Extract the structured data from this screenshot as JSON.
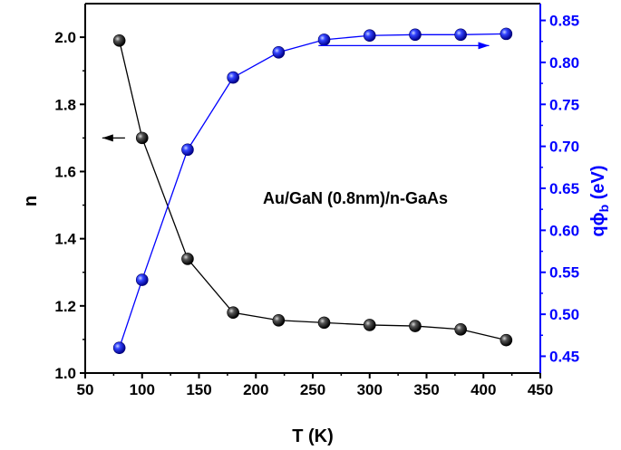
{
  "chart_data": {
    "type": "line",
    "title": "",
    "annotation": "Au/GaN (0.8nm)/n-GaAs",
    "xlabel": "T (K)",
    "ylabel_left": "n",
    "ylabel_right": {
      "prefix": "qϕ",
      "subscript": "b",
      "suffix": " (eV)"
    },
    "xlim": [
      50,
      450
    ],
    "ylim_left": [
      1.0,
      2.1
    ],
    "ylim_right": [
      0.43,
      0.87
    ],
    "x_ticks": [
      50,
      100,
      150,
      200,
      250,
      300,
      350,
      400,
      450
    ],
    "x_tick_labels": [
      "50",
      "100",
      "150",
      "200",
      "250",
      "300",
      "350",
      "400",
      "450"
    ],
    "y_left_ticks": [
      1.0,
      1.2,
      1.4,
      1.6,
      1.8,
      2.0
    ],
    "y_left_tick_labels": [
      "1.0",
      "1.2",
      "1.4",
      "1.6",
      "1.8",
      "2.0"
    ],
    "y_right_ticks": [
      0.45,
      0.5,
      0.55,
      0.6,
      0.65,
      0.7,
      0.75,
      0.8,
      0.85
    ],
    "y_right_tick_labels": [
      "0.45",
      "0.50",
      "0.55",
      "0.60",
      "0.65",
      "0.70",
      "0.75",
      "0.80",
      "0.85"
    ],
    "grid": false,
    "series": [
      {
        "axis": "left",
        "color": "#000000",
        "x": [
          80,
          100,
          140,
          180,
          220,
          260,
          300,
          340,
          380,
          420
        ],
        "y": [
          1.99,
          1.7,
          1.34,
          1.18,
          1.157,
          1.15,
          1.143,
          1.14,
          1.13,
          1.098
        ]
      },
      {
        "axis": "right",
        "color": "#0000ff",
        "x": [
          80,
          100,
          140,
          180,
          220,
          260,
          300,
          340,
          380,
          420
        ],
        "y": [
          0.46,
          0.541,
          0.696,
          0.782,
          0.812,
          0.827,
          0.832,
          0.833,
          0.833,
          0.834
        ]
      }
    ],
    "arrows": [
      {
        "axis": "left",
        "direction": "left",
        "color": "#000000",
        "x_from": 85,
        "x_to": 65,
        "y": 1.7
      },
      {
        "axis": "right",
        "direction": "right",
        "color": "#0000ff",
        "x_from": 255,
        "x_to": 405,
        "y": 0.82
      }
    ]
  }
}
